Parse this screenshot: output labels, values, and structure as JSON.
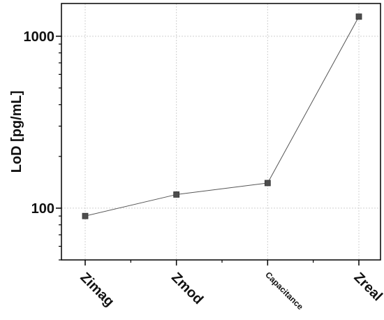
{
  "chart_data": {
    "type": "line",
    "title": "",
    "xlabel": "",
    "ylabel": "LoD [pg/mL]",
    "categories": [
      "Zimag",
      "Zmod",
      "Capacitance",
      "Zreal"
    ],
    "series": [
      {
        "values": [
          90,
          120,
          140,
          1300
        ]
      }
    ],
    "y_scale": "log",
    "ylim": [
      50,
      1550
    ],
    "y_ticks": [
      100,
      1000
    ],
    "y_tick_labels": [
      "100",
      "1000"
    ],
    "grid": true,
    "legend": "none",
    "colors": {
      "marker": "#4d4d4d",
      "line": "#555555",
      "grid": "#d0d0d0",
      "axis": "#000000"
    }
  }
}
